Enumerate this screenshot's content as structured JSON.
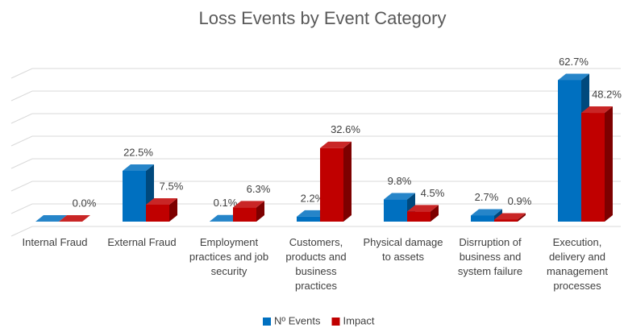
{
  "chart_data": {
    "type": "bar3d",
    "title": "Loss Events by Event Category",
    "categories": [
      "Internal Fraud",
      "External Fraud",
      "Employment practices and job security",
      "Customers, products and business practices",
      "Physical damage to assets",
      "Disrruption of business and system failure",
      "Execution, delivery and management processes"
    ],
    "series": [
      {
        "name": "Nº Events",
        "color": "#0070c0",
        "values": [
          0.0,
          22.5,
          0.1,
          2.2,
          9.8,
          2.7,
          62.7
        ],
        "value_labels": [
          null,
          "22.5%",
          "0.1%",
          "2.2%",
          "9.8%",
          "2.7%",
          "62.7%"
        ]
      },
      {
        "name": "Impact",
        "color": "#c00000",
        "values": [
          0.0,
          7.5,
          6.3,
          32.6,
          4.5,
          0.9,
          48.2
        ],
        "value_labels": [
          "0.0%",
          "7.5%",
          "6.3%",
          "32.6%",
          "4.5%",
          "0.9%",
          "48.2%"
        ]
      }
    ],
    "ylim": [
      0,
      70
    ],
    "yticks": [
      0,
      10,
      20,
      30,
      40,
      50,
      60,
      70
    ],
    "grid": true,
    "legend": "bottom"
  }
}
